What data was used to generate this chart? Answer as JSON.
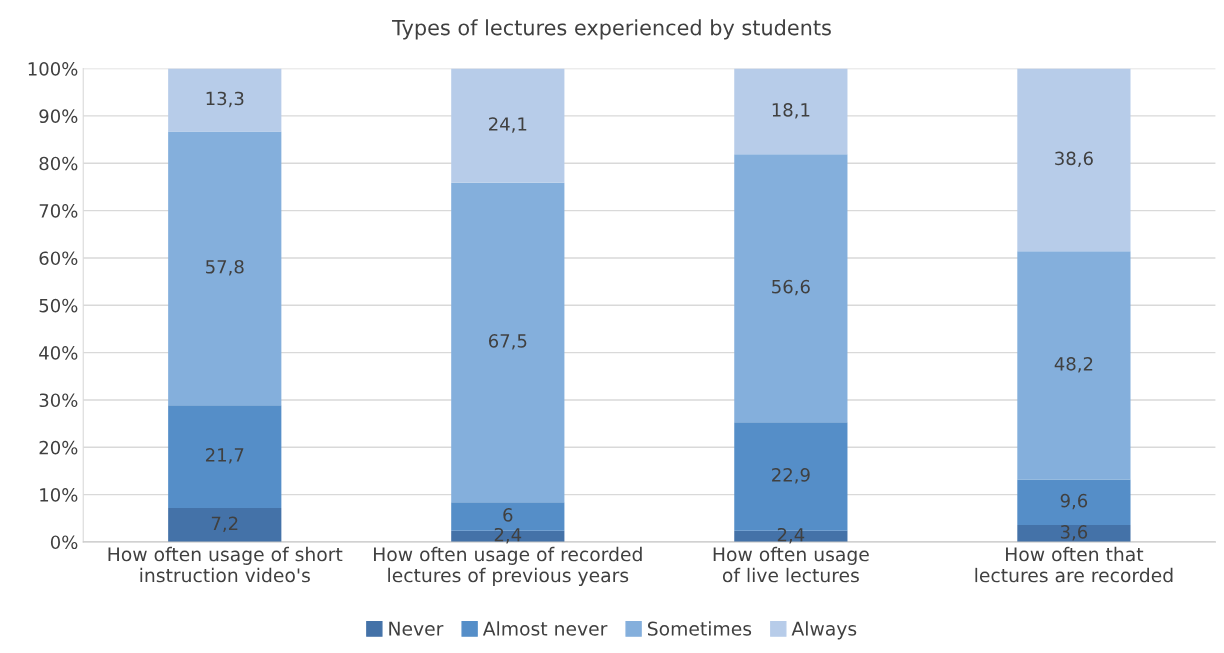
{
  "chart_data": {
    "type": "bar",
    "title": "Types of lectures experienced by students",
    "categories": [
      "How often usage of short instruction video's",
      "How often usage of recorded lectures of previous years",
      "How often usage of live lectures",
      "How often that lectures are recorded"
    ],
    "stacked": true,
    "series": [
      {
        "name": "Never",
        "color": "#4472a8",
        "values": [
          7.2,
          2.4,
          2.4,
          3.6
        ],
        "value_labels": [
          "7,2",
          "2,4",
          "2,4",
          "3,6"
        ]
      },
      {
        "name": "Almost never",
        "color": "#558ec8",
        "values": [
          21.7,
          6,
          22.9,
          9.6
        ],
        "value_labels": [
          "21,7",
          "6",
          "22,9",
          "9,6"
        ]
      },
      {
        "name": "Sometimes",
        "color": "#84afdc",
        "values": [
          57.8,
          67.5,
          56.6,
          48.2
        ],
        "value_labels": [
          "57,8",
          "67,5",
          "56,6",
          "48,2"
        ]
      },
      {
        "name": "Always",
        "color": "#b7cce9",
        "values": [
          13.3,
          24.1,
          18.1,
          38.6
        ],
        "value_labels": [
          "13,3",
          "24,1",
          "18,1",
          "38,6"
        ]
      }
    ],
    "ylim": [
      0,
      100
    ],
    "yticks": [
      {
        "value": 0,
        "label": "0%"
      },
      {
        "value": 10,
        "label": "10%"
      },
      {
        "value": 20,
        "label": "20%"
      },
      {
        "value": 30,
        "label": "30%"
      },
      {
        "value": 40,
        "label": "40%"
      },
      {
        "value": 50,
        "label": "50%"
      },
      {
        "value": 60,
        "label": "60%"
      },
      {
        "value": 70,
        "label": "70%"
      },
      {
        "value": 80,
        "label": "80%"
      },
      {
        "value": 90,
        "label": "90%"
      },
      {
        "value": 100,
        "label": "100%"
      }
    ],
    "grid": "y",
    "legend": "bottom"
  }
}
